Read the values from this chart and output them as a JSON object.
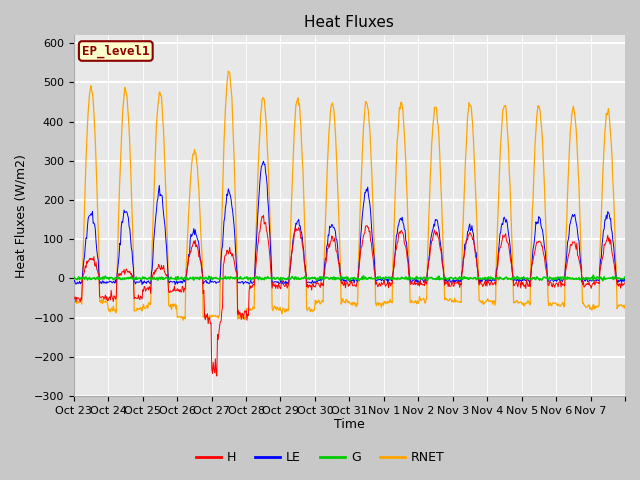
{
  "title": "Heat Fluxes",
  "ylabel": "Heat Fluxes (W/m2)",
  "xlabel": "Time",
  "ylim": [
    -300,
    620
  ],
  "yticks": [
    -300,
    -200,
    -100,
    0,
    100,
    200,
    300,
    400,
    500,
    600
  ],
  "legend_label": "EP_level1",
  "series_labels": [
    "H",
    "LE",
    "G",
    "RNET"
  ],
  "series_colors": [
    "red",
    "blue",
    "#00cc00",
    "orange"
  ],
  "fig_facecolor": "#c8c8c8",
  "plot_facecolor": "#e8e8e8",
  "n_days": 16,
  "xtick_labels": [
    "Oct 23",
    "Oct 24",
    "Oct 25",
    "Oct 26",
    "Oct 27",
    "Oct 28",
    "Oct 29",
    "Oct 30",
    "Oct 31",
    "Nov 1",
    "Nov 2",
    "Nov 3",
    "Nov 4",
    "Nov 5",
    "Nov 6",
    "Nov 7"
  ],
  "title_fontsize": 11,
  "axis_fontsize": 9,
  "tick_fontsize": 8,
  "legend_fontsize": 9
}
